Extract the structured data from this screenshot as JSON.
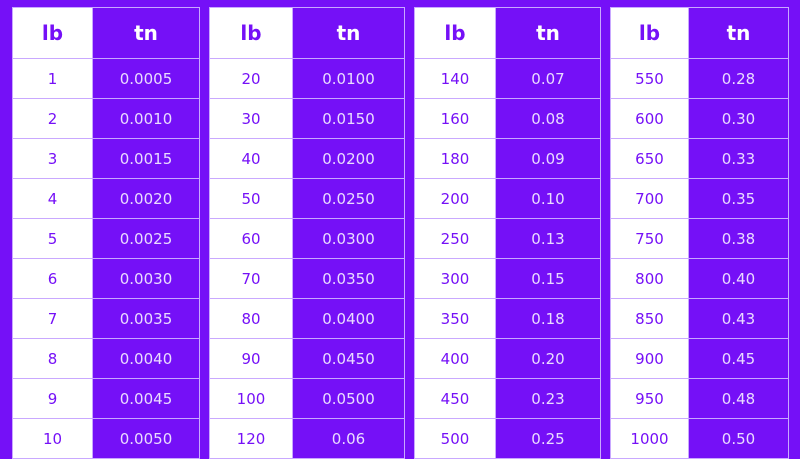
{
  "colors": {
    "accent": "#7510f7",
    "white": "#ffffff"
  },
  "headers": {
    "lb": "lb",
    "tn": "tn"
  },
  "tables": [
    {
      "rows": [
        [
          "1",
          "0.0005"
        ],
        [
          "2",
          "0.0010"
        ],
        [
          "3",
          "0.0015"
        ],
        [
          "4",
          "0.0020"
        ],
        [
          "5",
          "0.0025"
        ],
        [
          "6",
          "0.0030"
        ],
        [
          "7",
          "0.0035"
        ],
        [
          "8",
          "0.0040"
        ],
        [
          "9",
          "0.0045"
        ],
        [
          "10",
          "0.0050"
        ]
      ]
    },
    {
      "rows": [
        [
          "20",
          "0.0100"
        ],
        [
          "30",
          "0.0150"
        ],
        [
          "40",
          "0.0200"
        ],
        [
          "50",
          "0.0250"
        ],
        [
          "60",
          "0.0300"
        ],
        [
          "70",
          "0.0350"
        ],
        [
          "80",
          "0.0400"
        ],
        [
          "90",
          "0.0450"
        ],
        [
          "100",
          "0.0500"
        ],
        [
          "120",
          "0.06"
        ]
      ]
    },
    {
      "rows": [
        [
          "140",
          "0.07"
        ],
        [
          "160",
          "0.08"
        ],
        [
          "180",
          "0.09"
        ],
        [
          "200",
          "0.10"
        ],
        [
          "250",
          "0.13"
        ],
        [
          "300",
          "0.15"
        ],
        [
          "350",
          "0.18"
        ],
        [
          "400",
          "0.20"
        ],
        [
          "450",
          "0.23"
        ],
        [
          "500",
          "0.25"
        ]
      ]
    },
    {
      "rows": [
        [
          "550",
          "0.28"
        ],
        [
          "600",
          "0.30"
        ],
        [
          "650",
          "0.33"
        ],
        [
          "700",
          "0.35"
        ],
        [
          "750",
          "0.38"
        ],
        [
          "800",
          "0.40"
        ],
        [
          "850",
          "0.43"
        ],
        [
          "900",
          "0.45"
        ],
        [
          "950",
          "0.48"
        ],
        [
          "1000",
          "0.50"
        ]
      ]
    }
  ]
}
